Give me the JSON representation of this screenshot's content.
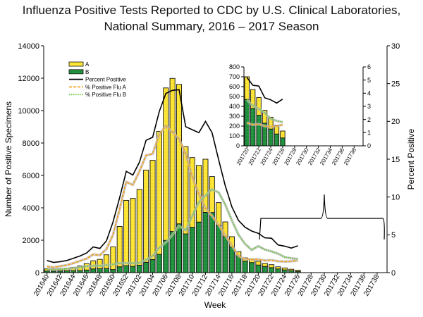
{
  "chart_data": {
    "type": "bar",
    "stacked": true,
    "title": "Influenza Positive Tests Reported to CDC by U.S. Clinical Laboratories,",
    "subtitle": "National Summary, 2016 – 2017 Season",
    "xlabel": "Week",
    "ylabel": "Number of Positive Specimens",
    "y2label": "Percent Positive",
    "ylim": [
      0,
      14000
    ],
    "y_ticks": [
      0,
      2000,
      4000,
      6000,
      8000,
      10000,
      12000,
      14000
    ],
    "y2lim": [
      0,
      30
    ],
    "y2_ticks": [
      0,
      5,
      10,
      15,
      20,
      25,
      30
    ],
    "legend_placement": "top-left",
    "categories": [
      "201640",
      "201641",
      "201642",
      "201643",
      "201644",
      "201645",
      "201646",
      "201647",
      "201648",
      "201649",
      "201650",
      "201651",
      "201652",
      "201701",
      "201702",
      "201703",
      "201704",
      "201705",
      "201706",
      "201707",
      "201708",
      "201709",
      "201710",
      "201711",
      "201712",
      "201713",
      "201714",
      "201715",
      "201716",
      "201717",
      "201718",
      "201719",
      "201720",
      "201721",
      "201722",
      "201723",
      "201724",
      "201725",
      "201726",
      "201727",
      "201728",
      "201729",
      "201730",
      "201731",
      "201732",
      "201733",
      "201734",
      "201735",
      "201736",
      "201737",
      "201738",
      "201739"
    ],
    "x_tick_labels": [
      "201640",
      "201642",
      "201644",
      "201646",
      "201648",
      "201650",
      "201652",
      "201702",
      "201704",
      "201706",
      "201708",
      "201710",
      "201712",
      "201714",
      "201716",
      "201718",
      "201720",
      "201722",
      "201724",
      "201726",
      "201728",
      "201730",
      "201732",
      "201734",
      "201736",
      "201738"
    ],
    "series": [
      {
        "name": "A",
        "kind": "bar",
        "color": "#FFE83C",
        "values": [
          130,
          140,
          150,
          170,
          210,
          290,
          400,
          500,
          580,
          840,
          1400,
          2490,
          4030,
          4190,
          4680,
          5690,
          6120,
          7590,
          9410,
          9450,
          8610,
          5390,
          4300,
          3500,
          3280,
          2220,
          1410,
          910,
          640,
          270,
          200,
          220,
          230,
          190,
          180,
          130,
          120,
          90,
          70,
          null,
          null,
          null,
          null,
          null,
          null,
          null,
          null,
          null,
          null,
          null,
          null,
          null
        ]
      },
      {
        "name": "B",
        "kind": "bar",
        "color": "#1E8C3A",
        "values": [
          100,
          90,
          100,
          110,
          120,
          130,
          160,
          230,
          240,
          260,
          190,
          360,
          430,
          390,
          460,
          640,
          810,
          1130,
          1990,
          2540,
          3010,
          2390,
          2800,
          3120,
          3720,
          3710,
          2910,
          2220,
          1580,
          1030,
          710,
          620,
          470,
          380,
          310,
          230,
          170,
          120,
          80,
          null,
          null,
          null,
          null,
          null,
          null,
          null,
          null,
          null,
          null,
          null,
          null,
          null
        ]
      },
      {
        "name": "Percent Positive",
        "kind": "line",
        "axis": "right",
        "color": "#000000",
        "style": "solid",
        "values": [
          1.6,
          1.35,
          1.45,
          1.6,
          1.9,
          2.2,
          2.6,
          3.4,
          3.2,
          4.2,
          6.7,
          9.9,
          13.4,
          12.9,
          14.6,
          17.5,
          17.9,
          21.3,
          23.7,
          24.1,
          24.2,
          19.3,
          18.9,
          18.5,
          20.0,
          18.5,
          14.9,
          11.5,
          8.7,
          6.9,
          6.0,
          5.5,
          5.2,
          4.6,
          4.55,
          3.65,
          3.5,
          3.25,
          3.55,
          null,
          null,
          null,
          null,
          null,
          null,
          null,
          null,
          null,
          null,
          null,
          null,
          null
        ]
      },
      {
        "name": "% Positive Flu A",
        "kind": "line",
        "axis": "right",
        "color": "#F5A623",
        "style": "dashed",
        "values": [
          0.8,
          0.7,
          0.85,
          1.0,
          1.25,
          1.55,
          1.85,
          2.4,
          2.3,
          3.1,
          5.0,
          8.4,
          12.0,
          11.6,
          13.4,
          15.5,
          15.7,
          18.3,
          19.4,
          18.6,
          17.7,
          15.7,
          12.7,
          10.4,
          8.5,
          7.5,
          6.3,
          4.9,
          3.6,
          2.2,
          1.8,
          1.75,
          1.75,
          1.6,
          1.65,
          1.5,
          1.45,
          1.5,
          1.6,
          null,
          null,
          null,
          null,
          null,
          null,
          null,
          null,
          null,
          null,
          null,
          null,
          null
        ]
      },
      {
        "name": "% Positive Flu B",
        "kind": "line",
        "axis": "right",
        "color": "#66CC33",
        "style": "dotted",
        "values": [
          0.45,
          0.4,
          0.45,
          0.5,
          0.6,
          0.7,
          0.85,
          0.9,
          0.9,
          1.0,
          1.1,
          1.25,
          1.25,
          1.25,
          1.3,
          1.7,
          2.2,
          3.3,
          4.0,
          5.0,
          6.2,
          5.6,
          7.5,
          9.3,
          10.2,
          11.0,
          10.6,
          9.0,
          6.9,
          5.0,
          3.8,
          3.0,
          3.5,
          3.05,
          2.8,
          2.5,
          2.05,
          1.9,
          1.8,
          null,
          null,
          null,
          null,
          null,
          null,
          null,
          null,
          null,
          null,
          null,
          null,
          null
        ]
      }
    ],
    "inset": {
      "type": "bar",
      "stacked": true,
      "categories": [
        "201720",
        "201721",
        "201722",
        "201723",
        "201724",
        "201725",
        "201726",
        "201727",
        "201728",
        "201729",
        "201730",
        "201731",
        "201732",
        "201733",
        "201734",
        "201735",
        "201736",
        "201737",
        "201738",
        "201739"
      ],
      "x_tick_labels": [
        "201720",
        "201722",
        "201724",
        "201726",
        "201728",
        "201730",
        "201732",
        "201734",
        "201736",
        "201738"
      ],
      "ylim": [
        0,
        800
      ],
      "y_ticks": [
        0,
        100,
        200,
        300,
        400,
        500,
        600,
        700,
        800
      ],
      "y2lim": [
        0,
        6
      ],
      "y2_ticks": [
        0,
        1,
        2,
        3,
        4,
        5,
        6
      ],
      "A": [
        230,
        190,
        180,
        130,
        120,
        90,
        70
      ],
      "B": [
        470,
        380,
        310,
        230,
        170,
        120,
        80
      ],
      "percent_positive": [
        5.2,
        4.6,
        4.55,
        3.65,
        3.5,
        3.25,
        3.55
      ],
      "pct_flu_a": [
        1.75,
        1.6,
        1.65,
        1.5,
        1.45,
        1.5,
        1.6
      ],
      "pct_flu_b": [
        3.5,
        3.05,
        2.8,
        2.5,
        2.05,
        1.9,
        1.8
      ]
    }
  }
}
